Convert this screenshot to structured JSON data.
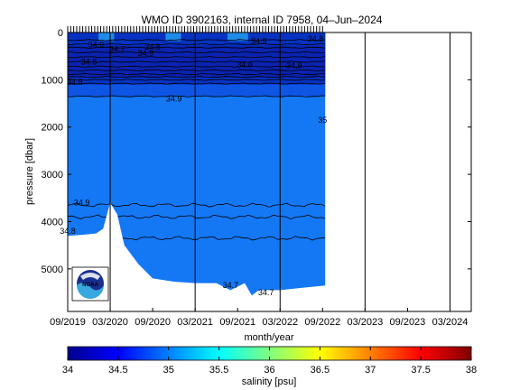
{
  "chart_data": {
    "type": "heatmap",
    "title": "WMO ID 3902163, internal ID 7958, 04–Jun–2024",
    "xlabel": "month/year",
    "ylabel": "pressure [dbar]",
    "colorbar_label": "salinity [psu]",
    "x_tick_labels": [
      "09/2019",
      "03/2020",
      "09/2020",
      "03/2021",
      "09/2021",
      "03/2022",
      "09/2022",
      "03/2023",
      "09/2023",
      "03/2024"
    ],
    "y_tick_values": [
      0,
      1000,
      2000,
      3000,
      4000,
      5000
    ],
    "y_tick_labels": [
      "0",
      "1000",
      "2000",
      "3000",
      "4000",
      "5000"
    ],
    "ylim": [
      5900,
      0
    ],
    "x_range": [
      "2019-09",
      "2024-06"
    ],
    "data_time_range": [
      "2019-09",
      "2022-09"
    ],
    "colorbar_ticks": [
      34,
      34.5,
      35,
      35.5,
      36,
      36.5,
      37,
      37.5,
      38
    ],
    "colorbar_tick_labels": [
      "34",
      "34.5",
      "35",
      "35.5",
      "36",
      "36.5",
      "37",
      "37.5",
      "38"
    ],
    "colormap": "jet",
    "salinity_range": [
      34,
      38
    ],
    "vertical_reference_lines": [
      "2020-03",
      "2021-03",
      "2022-03",
      "2023-03",
      "2024-03"
    ],
    "contour_labels": [
      "34.8",
      "34.9",
      "34.9",
      "34.8",
      "34.7",
      "34.9",
      "34.8",
      "34.8",
      "34.9",
      "34.8",
      "34.9",
      "35",
      "34.9",
      "34.8",
      "34.7",
      "34.7"
    ],
    "profile_depth_dbar": [
      {
        "date": "2019-09",
        "max_p": 4300
      },
      {
        "date": "2019-11",
        "max_p": 4280
      },
      {
        "date": "2020-01",
        "max_p": 4250
      },
      {
        "date": "2020-02",
        "max_p": 4150
      },
      {
        "date": "2020-03",
        "max_p": 3600
      },
      {
        "date": "2020-04",
        "max_p": 3850
      },
      {
        "date": "2020-05",
        "max_p": 4500
      },
      {
        "date": "2020-07",
        "max_p": 4900
      },
      {
        "date": "2020-09",
        "max_p": 5200
      },
      {
        "date": "2020-12",
        "max_p": 5270
      },
      {
        "date": "2021-03",
        "max_p": 5300
      },
      {
        "date": "2021-06",
        "max_p": 5300
      },
      {
        "date": "2021-08",
        "max_p": 5450
      },
      {
        "date": "2021-10",
        "max_p": 5300
      },
      {
        "date": "2021-11",
        "max_p": 5560
      },
      {
        "date": "2021-12",
        "max_p": 5450
      },
      {
        "date": "2022-03",
        "max_p": 5450
      },
      {
        "date": "2022-06",
        "max_p": 5400
      },
      {
        "date": "2022-09",
        "max_p": 5350
      }
    ],
    "colors": {
      "deep_water": "#1478f5",
      "intermediate_water": "#0e55e3",
      "upper_water": "#0632c2",
      "core_water": "#0a23b0",
      "near_surface": "#1f8be8"
    }
  },
  "logo": {
    "name": "noaa-logo",
    "text": "NOAA"
  }
}
